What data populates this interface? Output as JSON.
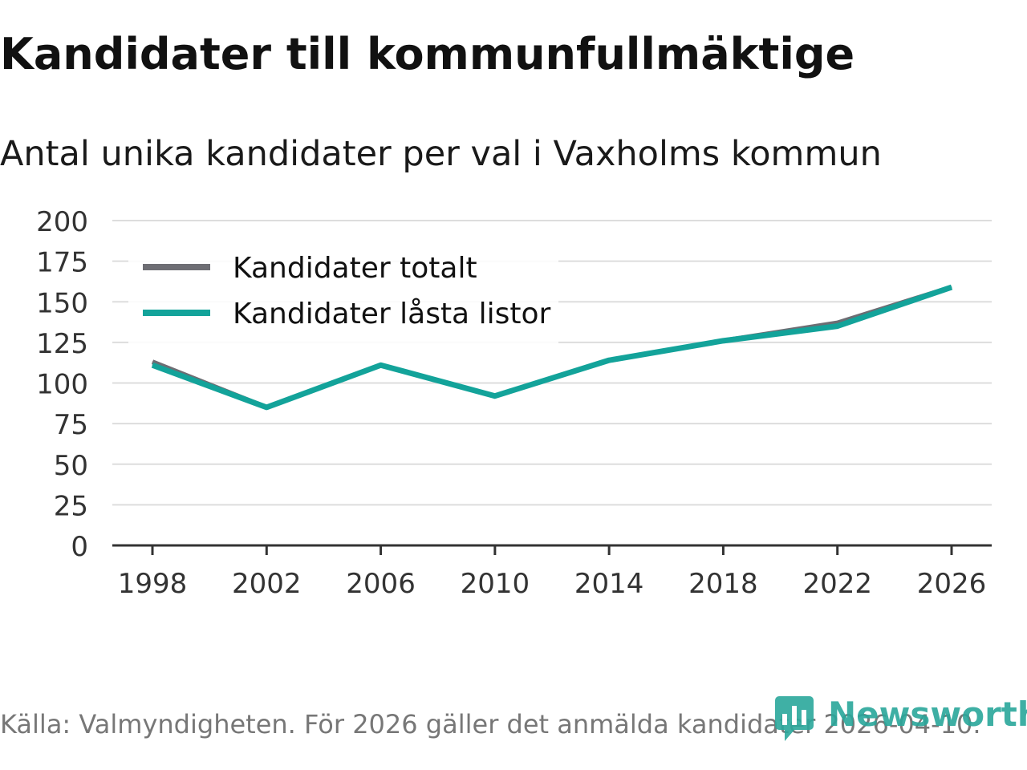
{
  "header": {
    "title": "Kandidater till kommunfullmäktige",
    "subtitle": "Antal unika kandidater per val i Vaxholms kommun"
  },
  "footer": {
    "source": "Källa: Valmyndigheten. För 2026 gäller det anmälda kandidater 2026-04-10.",
    "brand": "Newsworthy"
  },
  "colors": {
    "total": "#6d6d73",
    "locked": "#13a39a",
    "grid": "#dddddd",
    "axis": "#333333",
    "brand": "#2aa79b"
  },
  "chart_data": {
    "type": "line",
    "title": "Kandidater till kommunfullmäktige",
    "subtitle": "Antal unika kandidater per val i Vaxholms kommun",
    "xlabel": "",
    "ylabel": "",
    "x": [
      "1998",
      "2002",
      "2006",
      "2010",
      "2014",
      "2018",
      "2022",
      "2026"
    ],
    "ylim": [
      0,
      200
    ],
    "yticks": [
      "0",
      "25",
      "50",
      "75",
      "100",
      "125",
      "150",
      "175",
      "200"
    ],
    "grid": true,
    "legend_position": "top-left",
    "series": [
      {
        "name": "Kandidater totalt",
        "color_key": "total",
        "values": [
          113,
          85,
          111,
          92,
          114,
          126,
          137,
          159
        ]
      },
      {
        "name": "Kandidater låsta listor",
        "color_key": "locked",
        "values": [
          111,
          85,
          111,
          92,
          114,
          126,
          135,
          159
        ]
      }
    ]
  }
}
